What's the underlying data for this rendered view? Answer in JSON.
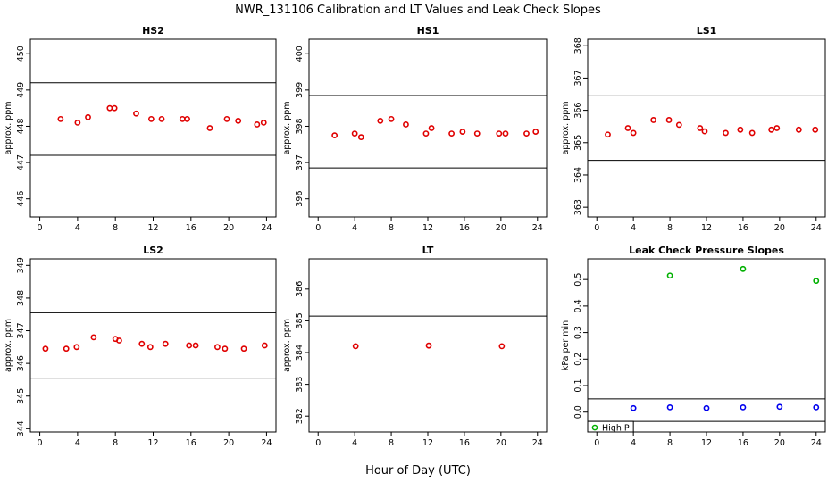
{
  "title": "NWR_131106  Calibration and LT Values and Leak Check Slopes",
  "xlabel": "Hour of Day (UTC)",
  "chart_data": [
    {
      "type": "scatter",
      "title": "HS2",
      "ylabel": "approx. ppm",
      "xlim": [
        -1,
        25
      ],
      "ylim": [
        445.5,
        450.4
      ],
      "xticks": [
        0,
        4,
        8,
        12,
        16,
        20,
        24
      ],
      "yticks": [
        446,
        447,
        448,
        449,
        450
      ],
      "hlines": [
        449.2,
        447.2
      ],
      "series": [
        {
          "color": "#e00000",
          "x": [
            2.2,
            4.0,
            5.1,
            7.4,
            7.9,
            10.2,
            11.8,
            12.9,
            15.1,
            15.6,
            18.0,
            19.8,
            21.0,
            23.0,
            23.7
          ],
          "y": [
            448.2,
            448.1,
            448.25,
            448.5,
            448.5,
            448.35,
            448.2,
            448.2,
            448.2,
            448.2,
            447.95,
            448.2,
            448.15,
            448.05,
            448.1
          ]
        }
      ]
    },
    {
      "type": "scatter",
      "title": "HS1",
      "ylabel": "approx. ppm",
      "xlim": [
        -1,
        25
      ],
      "ylim": [
        395.5,
        400.4
      ],
      "xticks": [
        0,
        4,
        8,
        12,
        16,
        20,
        24
      ],
      "yticks": [
        396,
        397,
        398,
        399,
        400
      ],
      "hlines": [
        398.85,
        396.85
      ],
      "series": [
        {
          "color": "#e00000",
          "x": [
            1.8,
            4.0,
            4.7,
            6.8,
            8.0,
            9.6,
            11.8,
            12.4,
            14.6,
            15.8,
            17.4,
            19.8,
            20.5,
            22.8,
            23.8
          ],
          "y": [
            397.75,
            397.8,
            397.7,
            398.15,
            398.2,
            398.05,
            397.8,
            397.95,
            397.8,
            397.85,
            397.8,
            397.8,
            397.8,
            397.8,
            397.85
          ]
        }
      ]
    },
    {
      "type": "scatter",
      "title": "LS1",
      "ylabel": "approx. ppm",
      "xlim": [
        -1,
        25
      ],
      "ylim": [
        362.7,
        368.2
      ],
      "xticks": [
        0,
        4,
        8,
        12,
        16,
        20,
        24
      ],
      "yticks": [
        363,
        364,
        365,
        366,
        367,
        368
      ],
      "hlines": [
        366.45,
        364.45
      ],
      "series": [
        {
          "color": "#e00000",
          "x": [
            1.2,
            3.4,
            4.0,
            6.2,
            7.9,
            9.0,
            11.3,
            11.8,
            14.1,
            15.7,
            17.0,
            19.1,
            19.7,
            22.1,
            23.9
          ],
          "y": [
            365.25,
            365.45,
            365.3,
            365.7,
            365.7,
            365.55,
            365.45,
            365.35,
            365.3,
            365.4,
            365.3,
            365.4,
            365.45,
            365.4,
            365.4
          ]
        }
      ]
    },
    {
      "type": "scatter",
      "title": "LS2",
      "ylabel": "approx. ppm",
      "xlim": [
        -1,
        25
      ],
      "ylim": [
        343.9,
        349.2
      ],
      "xticks": [
        0,
        4,
        8,
        12,
        16,
        20,
        24
      ],
      "yticks": [
        344,
        345,
        346,
        347,
        348,
        349
      ],
      "hlines": [
        347.55,
        345.55
      ],
      "series": [
        {
          "color": "#e00000",
          "x": [
            0.6,
            2.8,
            3.9,
            5.7,
            8.0,
            8.4,
            10.8,
            11.7,
            13.3,
            15.8,
            16.5,
            18.8,
            19.6,
            21.6,
            23.8
          ],
          "y": [
            346.45,
            346.45,
            346.5,
            346.8,
            346.75,
            346.7,
            346.6,
            346.5,
            346.6,
            346.55,
            346.55,
            346.5,
            346.45,
            346.45,
            346.55
          ]
        }
      ]
    },
    {
      "type": "scatter",
      "title": "LT",
      "ylabel": "approx. ppm",
      "xlim": [
        -1,
        25
      ],
      "ylim": [
        381.5,
        386.95
      ],
      "xticks": [
        0,
        4,
        8,
        12,
        16,
        20,
        24
      ],
      "yticks": [
        382,
        383,
        384,
        385,
        386
      ],
      "hlines": [
        385.15,
        383.2
      ],
      "series": [
        {
          "color": "#e00000",
          "x": [
            4.1,
            12.1,
            20.1
          ],
          "y": [
            384.2,
            384.22,
            384.2
          ]
        }
      ]
    },
    {
      "type": "scatter",
      "title": "Leak Check Pressure Slopes",
      "ylabel": "kPa per min",
      "xlim": [
        -1,
        25
      ],
      "ylim": [
        -0.075,
        0.578
      ],
      "xticks": [
        0,
        4,
        8,
        12,
        16,
        20,
        24
      ],
      "yticks": [
        0.0,
        0.1,
        0.2,
        0.3,
        0.4,
        0.5
      ],
      "hlines": [
        0.05,
        -0.035
      ],
      "legend": {
        "placement": "bottom-left",
        "entries": [
          "High P"
        ],
        "color": "#00b000"
      },
      "series": [
        {
          "name": "High P",
          "color": "#00b000",
          "x": [
            8,
            16,
            24
          ],
          "y": [
            0.515,
            0.54,
            0.495
          ]
        },
        {
          "color": "#0000ee",
          "x": [
            4,
            8,
            12,
            16,
            20,
            24
          ],
          "y": [
            0.015,
            0.018,
            0.015,
            0.018,
            0.02,
            0.018
          ]
        }
      ]
    }
  ]
}
